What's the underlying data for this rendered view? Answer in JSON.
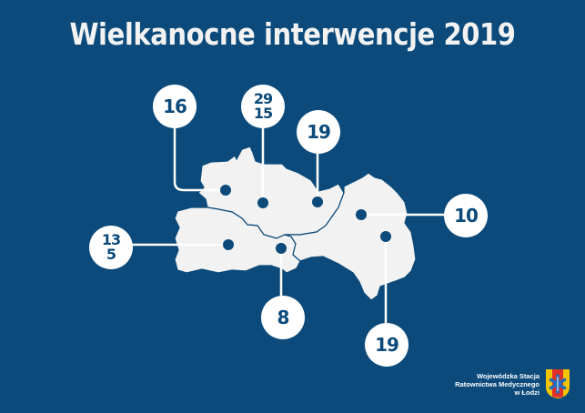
{
  "title": "Wielkanocne interwencje 2019",
  "markers": [
    {
      "name": "north-west",
      "values": [
        "16"
      ]
    },
    {
      "name": "north-central",
      "values": [
        "29",
        "15"
      ]
    },
    {
      "name": "north-east",
      "values": [
        "19"
      ]
    },
    {
      "name": "east",
      "values": [
        "10"
      ]
    },
    {
      "name": "west",
      "values": [
        "13",
        "5"
      ]
    },
    {
      "name": "south-central",
      "values": [
        "8"
      ]
    },
    {
      "name": "south-east",
      "values": [
        "19"
      ]
    }
  ],
  "logo": {
    "line1": "Wojewódzka Stacja",
    "line2": "Ratownictwa Medycznego",
    "line3": "w Łodzi",
    "icon": "star-of-life-coat-of-arms"
  },
  "colors": {
    "background": "#0b4a7a",
    "map": "#f2f2f2",
    "accent": "#ffffff"
  }
}
